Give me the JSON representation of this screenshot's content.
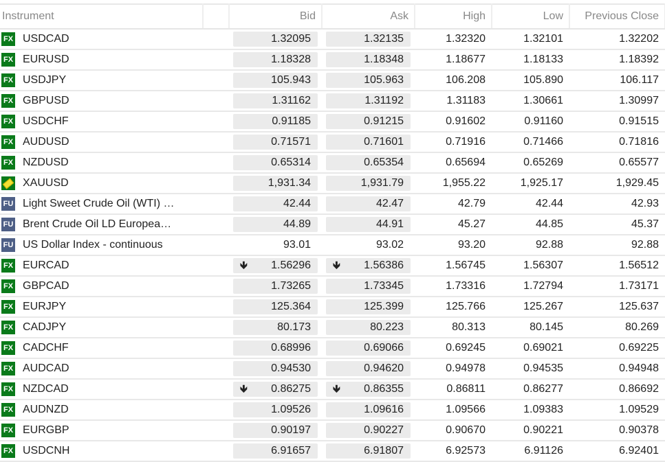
{
  "columns": {
    "instrument": "Instrument",
    "bid": "Bid",
    "ask": "Ask",
    "high": "High",
    "low": "Low",
    "prev": "Previous Close"
  },
  "rows": [
    {
      "type": "FX",
      "name": "USDCAD",
      "bid": "1.32095",
      "ask": "1.32135",
      "high": "1.32320",
      "low": "1.32101",
      "prev": "1.32202"
    },
    {
      "type": "FX",
      "name": "EURUSD",
      "bid": "1.18328",
      "ask": "1.18348",
      "high": "1.18677",
      "low": "1.18133",
      "prev": "1.18392"
    },
    {
      "type": "FX",
      "name": "USDJPY",
      "bid": "105.943",
      "ask": "105.963",
      "high": "106.208",
      "low": "105.890",
      "prev": "106.117"
    },
    {
      "type": "FX",
      "name": "GBPUSD",
      "bid": "1.31162",
      "ask": "1.31192",
      "high": "1.31183",
      "low": "1.30661",
      "prev": "1.30997"
    },
    {
      "type": "FX",
      "name": "USDCHF",
      "bid": "0.91185",
      "ask": "0.91215",
      "high": "0.91602",
      "low": "0.91160",
      "prev": "0.91515"
    },
    {
      "type": "FX",
      "name": "AUDUSD",
      "bid": "0.71571",
      "ask": "0.71601",
      "high": "0.71916",
      "low": "0.71466",
      "prev": "0.71816"
    },
    {
      "type": "FX",
      "name": "NZDUSD",
      "bid": "0.65314",
      "ask": "0.65354",
      "high": "0.65694",
      "low": "0.65269",
      "prev": "0.65577"
    },
    {
      "type": "GOLD",
      "name": "XAUUSD",
      "bid": "1,931.34",
      "ask": "1,931.79",
      "high": "1,955.22",
      "low": "1,925.17",
      "prev": "1,929.45"
    },
    {
      "type": "FU",
      "name": "Light Sweet Crude Oil (WTI) …",
      "bid": "42.44",
      "ask": "42.47",
      "high": "42.79",
      "low": "42.44",
      "prev": "42.93"
    },
    {
      "type": "FU",
      "name": "Brent Crude Oil LD Europea…",
      "bid": "44.89",
      "ask": "44.91",
      "high": "45.27",
      "low": "44.85",
      "prev": "45.37"
    },
    {
      "type": "FU",
      "name": "US Dollar Index - continuous",
      "bid": "93.01",
      "ask": "93.02",
      "high": "93.20",
      "low": "92.88",
      "prev": "92.88",
      "plain": true
    },
    {
      "type": "FX",
      "name": "EURCAD",
      "bid": "1.56296",
      "ask": "1.56386",
      "high": "1.56745",
      "low": "1.56307",
      "prev": "1.56512",
      "down": true
    },
    {
      "type": "FX",
      "name": "GBPCAD",
      "bid": "1.73265",
      "ask": "1.73345",
      "high": "1.73316",
      "low": "1.72794",
      "prev": "1.73171"
    },
    {
      "type": "FX",
      "name": "EURJPY",
      "bid": "125.364",
      "ask": "125.399",
      "high": "125.766",
      "low": "125.267",
      "prev": "125.637"
    },
    {
      "type": "FX",
      "name": "CADJPY",
      "bid": "80.173",
      "ask": "80.223",
      "high": "80.313",
      "low": "80.145",
      "prev": "80.269"
    },
    {
      "type": "FX",
      "name": "CADCHF",
      "bid": "0.68996",
      "ask": "0.69066",
      "high": "0.69245",
      "low": "0.69021",
      "prev": "0.69225"
    },
    {
      "type": "FX",
      "name": "AUDCAD",
      "bid": "0.94530",
      "ask": "0.94620",
      "high": "0.94978",
      "low": "0.94535",
      "prev": "0.94948"
    },
    {
      "type": "FX",
      "name": "NZDCAD",
      "bid": "0.86275",
      "ask": "0.86355",
      "high": "0.86811",
      "low": "0.86277",
      "prev": "0.86692",
      "down": true
    },
    {
      "type": "FX",
      "name": "AUDNZD",
      "bid": "1.09526",
      "ask": "1.09616",
      "high": "1.09566",
      "low": "1.09383",
      "prev": "1.09529"
    },
    {
      "type": "FX",
      "name": "EURGBP",
      "bid": "0.90197",
      "ask": "0.90227",
      "high": "0.90670",
      "low": "0.90221",
      "prev": "0.90378"
    },
    {
      "type": "FX",
      "name": "USDCNH",
      "bid": "6.91657",
      "ask": "6.91807",
      "high": "6.92573",
      "low": "6.91126",
      "prev": "6.92401"
    }
  ],
  "icons": {
    "down": "arrow-down-icon"
  }
}
